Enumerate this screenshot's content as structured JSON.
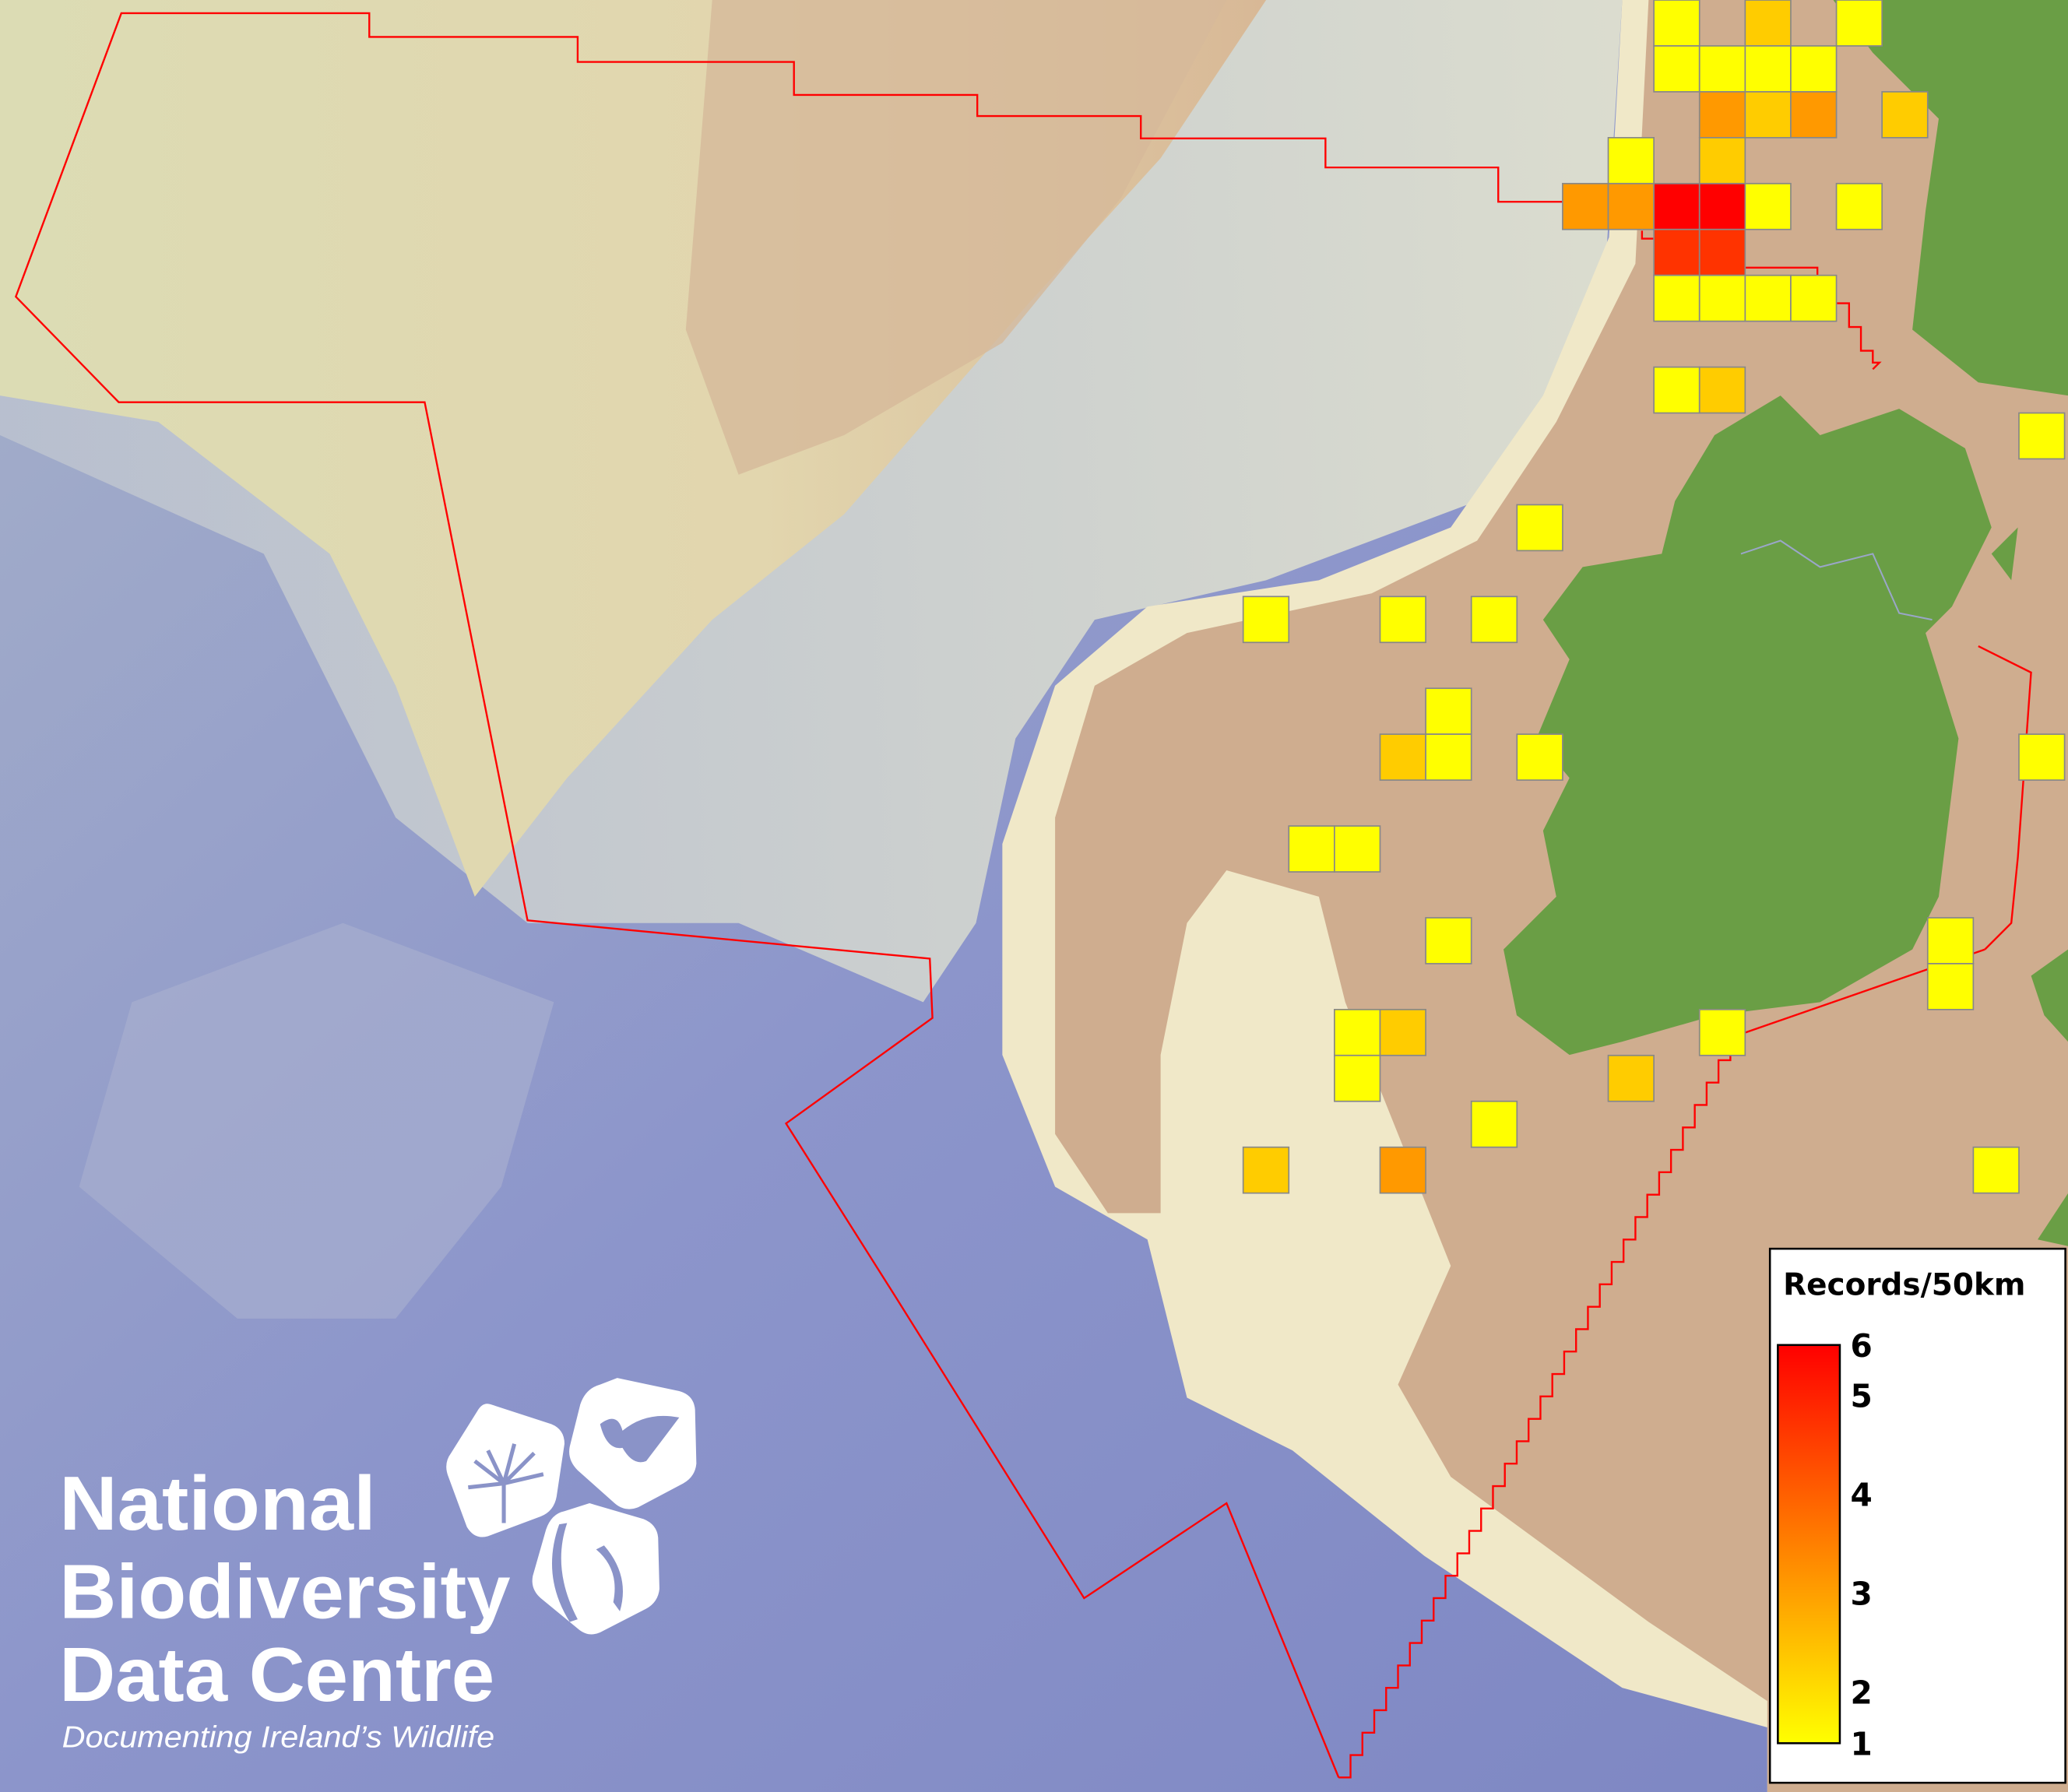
{
  "map": {
    "land_color": "#6a9e45",
    "shelf_color": "#cfad8f",
    "ocean_color": "#8a93c8",
    "boundary_color": "#ff0000",
    "cell_border_color": "#888888"
  },
  "grid_cells": {
    "values": [
      1,
      2,
      1,
      1,
      1,
      1,
      1,
      3,
      2,
      3,
      2,
      1,
      2,
      3,
      3,
      6,
      6,
      1,
      1,
      5,
      5,
      1,
      1,
      1,
      1,
      1,
      2,
      1,
      1,
      1,
      1,
      1,
      1,
      2,
      1,
      1,
      1,
      1,
      1,
      1,
      1,
      1,
      1,
      2,
      1,
      1,
      2,
      1,
      2,
      3,
      1
    ]
  },
  "legend": {
    "title": "Records/50km",
    "ticks": [
      "6",
      "5",
      "4",
      "3",
      "2",
      "1"
    ],
    "min": 1,
    "max": 6,
    "color_stops": {
      "1": "#ffff00",
      "2": "#ffcc00",
      "3": "#ff9900",
      "4": "#ff6600",
      "5": "#ff3300",
      "6": "#ff0000"
    }
  },
  "logo": {
    "line1": "National",
    "line2": "Biodiversity",
    "line3": "Data Centre",
    "tagline": "Documenting Ireland’s Wildlife"
  }
}
